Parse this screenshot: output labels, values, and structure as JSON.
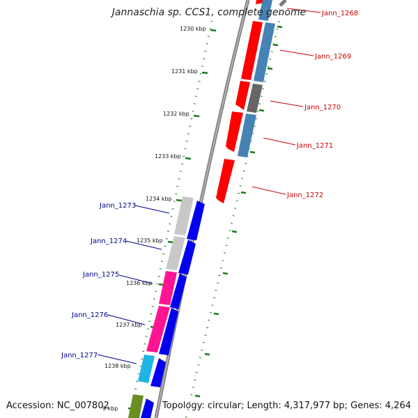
{
  "title": "Jannaschia sp. CCS1, complete genome",
  "footer": {
    "accession": "Accession: NC_007802",
    "topology": "Topology: circular; Length: 4,317,977 bp; Genes: 4,264"
  },
  "kbp_labels": [
    "1230 kbp",
    "1231 kbp",
    "1232 kbp",
    "1233 kbp",
    "1234 kbp",
    "1235 kbp",
    "1236 kbp",
    "1237 kbp",
    "1238 kbp",
    "9 kbp"
  ],
  "genes_right": [
    "Jann_1268",
    "Jann_1269",
    "Jann_1270",
    "Jann_1271",
    "Jann_1272"
  ],
  "genes_left": [
    "Jann_1273",
    "Jann_1274",
    "Jann_1275",
    "Jann_1276",
    "Jann_1277"
  ],
  "colors": {
    "red": "#ff0000",
    "blue": "#0000ee",
    "steelblue": "#4682b4",
    "gray": "#666666",
    "silver": "#c8c8c8",
    "pink": "#ff1493",
    "cyan": "#1eb4e6",
    "olive": "#6b8e23",
    "tick_green": "#1a7a1a",
    "backbone": "#808080"
  }
}
